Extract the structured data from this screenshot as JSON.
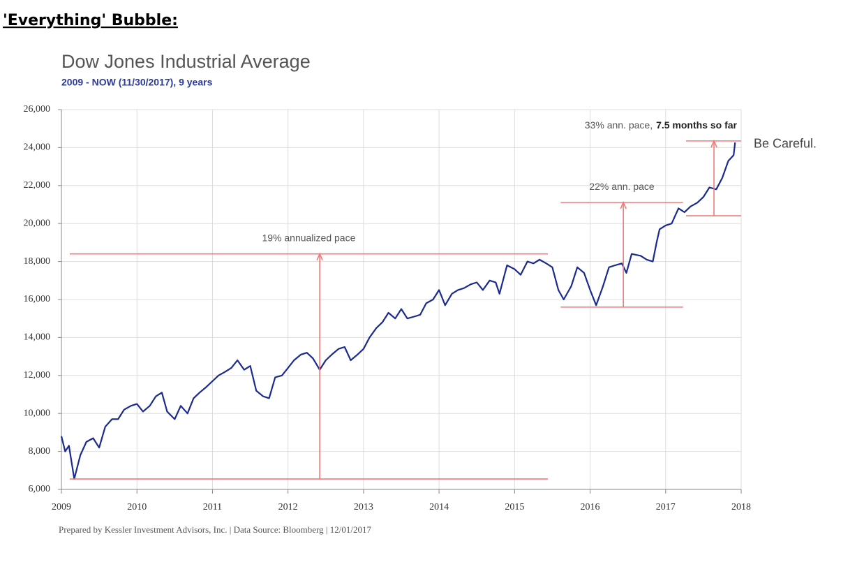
{
  "heading": "'Everything' Bubble:",
  "chart_data": {
    "type": "line",
    "title": "Dow Jones Industrial Average",
    "subtitle": "2009 - NOW (11/30/2017), 9 years",
    "footer": "Prepared by Kessler Investment Advisors, Inc. | Data Source: Bloomberg | 12/01/2017",
    "side_note": "Be Careful.",
    "grid": true,
    "xlim": [
      2009,
      2018
    ],
    "xticks": [
      2009,
      2010,
      2011,
      2012,
      2013,
      2014,
      2015,
      2016,
      2017,
      2018
    ],
    "ylim": [
      6000,
      26000
    ],
    "yticks": [
      {
        "value": 6000,
        "label": "6,000"
      },
      {
        "value": 8000,
        "label": "8,000"
      },
      {
        "value": 10000,
        "label": "10,000"
      },
      {
        "value": 12000,
        "label": "12,000"
      },
      {
        "value": 14000,
        "label": "14,000"
      },
      {
        "value": 16000,
        "label": "16,000"
      },
      {
        "value": 18000,
        "label": "18,000"
      },
      {
        "value": 20000,
        "label": "20,000"
      },
      {
        "value": 22000,
        "label": "22,000"
      },
      {
        "value": 24000,
        "label": "24,000"
      },
      {
        "value": 26000,
        "label": "26,000"
      }
    ],
    "x": [
      2009.0,
      2009.05,
      2009.1,
      2009.17,
      2009.25,
      2009.33,
      2009.42,
      2009.5,
      2009.58,
      2009.67,
      2009.75,
      2009.83,
      2009.92,
      2010.0,
      2010.08,
      2010.17,
      2010.25,
      2010.33,
      2010.4,
      2010.5,
      2010.58,
      2010.67,
      2010.75,
      2010.83,
      2010.92,
      2011.0,
      2011.08,
      2011.17,
      2011.25,
      2011.33,
      2011.42,
      2011.5,
      2011.58,
      2011.67,
      2011.75,
      2011.83,
      2011.92,
      2012.0,
      2012.08,
      2012.17,
      2012.25,
      2012.33,
      2012.42,
      2012.5,
      2012.58,
      2012.67,
      2012.75,
      2012.83,
      2012.92,
      2013.0,
      2013.08,
      2013.17,
      2013.25,
      2013.33,
      2013.42,
      2013.5,
      2013.58,
      2013.67,
      2013.75,
      2013.83,
      2013.92,
      2014.0,
      2014.08,
      2014.17,
      2014.25,
      2014.33,
      2014.42,
      2014.5,
      2014.58,
      2014.67,
      2014.75,
      2014.8,
      2014.9,
      2015.0,
      2015.08,
      2015.17,
      2015.25,
      2015.33,
      2015.42,
      2015.5,
      2015.58,
      2015.65,
      2015.75,
      2015.83,
      2015.92,
      2016.0,
      2016.08,
      2016.17,
      2016.25,
      2016.33,
      2016.42,
      2016.48,
      2016.55,
      2016.67,
      2016.75,
      2016.83,
      2016.88,
      2016.92,
      2017.0,
      2017.08,
      2017.17,
      2017.25,
      2017.33,
      2017.42,
      2017.5,
      2017.58,
      2017.67,
      2017.75,
      2017.83,
      2017.9,
      2017.92
    ],
    "series": [
      {
        "color": "#1b2a8e",
        "values": [
          8800,
          8000,
          8300,
          6550,
          7800,
          8500,
          8700,
          8200,
          9300,
          9700,
          9700,
          10200,
          10400,
          10500,
          10100,
          10400,
          10900,
          11100,
          10100,
          9700,
          10400,
          10000,
          10800,
          11100,
          11400,
          11700,
          12000,
          12200,
          12400,
          12800,
          12300,
          12500,
          11200,
          10900,
          10800,
          11900,
          12000,
          12400,
          12800,
          13100,
          13200,
          12900,
          12300,
          12800,
          13100,
          13400,
          13500,
          12800,
          13100,
          13400,
          14000,
          14500,
          14800,
          15300,
          15000,
          15500,
          15000,
          15100,
          15200,
          15800,
          16000,
          16500,
          15700,
          16300,
          16500,
          16600,
          16800,
          16900,
          16500,
          17000,
          16900,
          16300,
          17800,
          17600,
          17300,
          18000,
          17900,
          18100,
          17900,
          17700,
          16500,
          16000,
          16700,
          17700,
          17400,
          16500,
          15700,
          16700,
          17700,
          17800,
          17900,
          17400,
          18400,
          18300,
          18100,
          18000,
          19000,
          19700,
          19900,
          20000,
          20800,
          20600,
          20900,
          21100,
          21400,
          21900,
          21800,
          22400,
          23300,
          23600,
          24270
        ]
      }
    ],
    "reference_color": "#f07a7a",
    "reference_lines": [
      {
        "y": 6550,
        "x": [
          2009.11,
          2015.44
        ]
      },
      {
        "y": 18400,
        "x": [
          2009.11,
          2015.44
        ],
        "label": "19% annualized pace"
      },
      {
        "y": 15600,
        "x": [
          2015.61,
          2017.23
        ]
      },
      {
        "y": 21110,
        "x": [
          2015.61,
          2017.23
        ],
        "label": "22% ann. pace"
      },
      {
        "y": 20410,
        "x": [
          2017.27,
          2018
        ]
      },
      {
        "y": 24350,
        "x": [
          2017.27,
          2018
        ],
        "label": "33% ann. pace,",
        "label_bold": "7.5 months so far"
      }
    ],
    "arrows": [
      {
        "x": 2012.42,
        "from": 6550,
        "to": 18400
      },
      {
        "x": 2016.44,
        "from": 15600,
        "to": 21110
      },
      {
        "x": 2017.64,
        "from": 20410,
        "to": 24350
      }
    ]
  }
}
